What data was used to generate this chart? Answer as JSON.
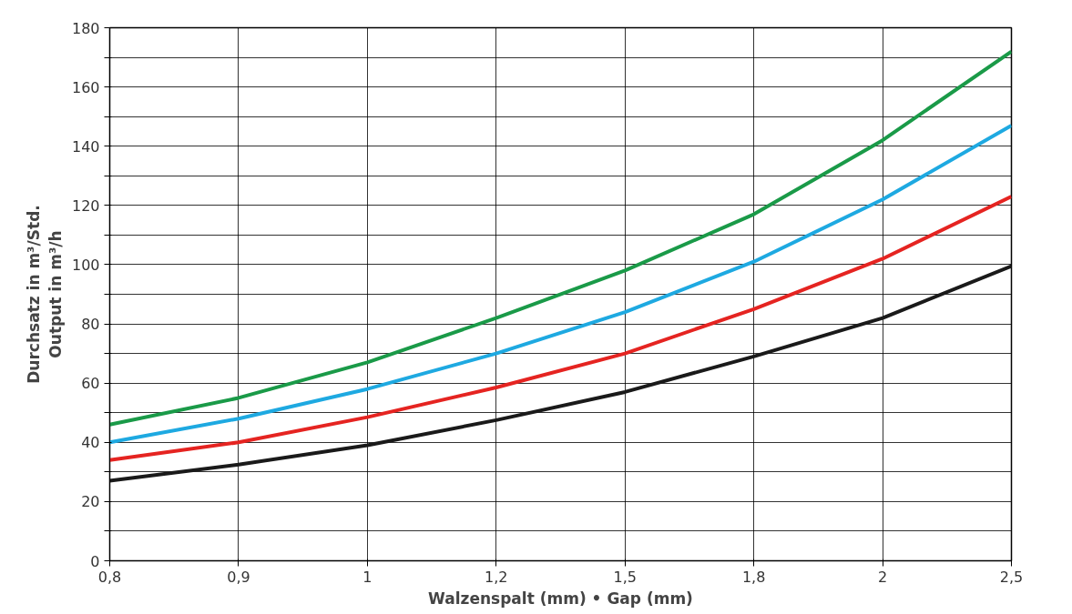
{
  "chart_data": {
    "type": "line",
    "xlabel": "Walzenspalt (mm) • Gap (mm)",
    "ylabel": "Durchsatz in m³/Std.\nOutput in m³/h",
    "categories": [
      "0,8",
      "0,9",
      "1",
      "1,2",
      "1,5",
      "1,8",
      "2",
      "2,5"
    ],
    "series": [
      {
        "color": "#1a9a48",
        "values": [
          46,
          55,
          67,
          82,
          98,
          117,
          142,
          172
        ]
      },
      {
        "color": "#1ea9e1",
        "values": [
          40,
          48,
          58,
          70,
          84,
          101,
          122,
          147
        ]
      },
      {
        "color": "#e52421",
        "values": [
          34,
          40,
          48.5,
          58.5,
          70,
          85,
          102,
          123
        ]
      },
      {
        "color": "#1a1a1a",
        "values": [
          27,
          32.5,
          39,
          47.5,
          57,
          69,
          82,
          99.5
        ]
      }
    ],
    "ylim": [
      0,
      180
    ],
    "yticks": [
      0,
      {
        "value": 10,
        "label": null
      },
      20,
      {
        "value": 30,
        "label": null
      },
      40,
      {
        "value": 50,
        "label": null
      },
      60,
      {
        "value": 70,
        "label": null
      },
      80,
      {
        "value": 90,
        "label": null
      },
      100,
      {
        "value": 110,
        "label": null
      },
      120,
      {
        "value": 130,
        "label": null
      },
      140,
      {
        "value": 150,
        "label": null
      },
      160,
      {
        "value": 170,
        "label": null
      },
      180
    ],
    "grid": true,
    "marker": "none",
    "line_style": "solid"
  }
}
